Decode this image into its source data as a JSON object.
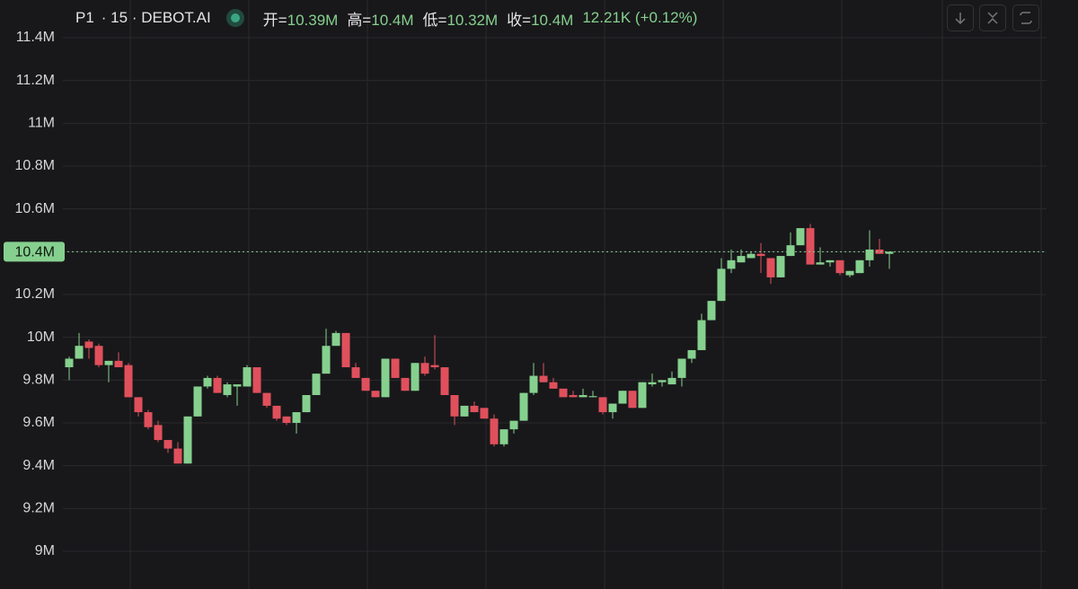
{
  "chart_data": {
    "type": "candlestick",
    "symbol": "P1",
    "interval_source": "· 15 · DEBOT.AI",
    "ohlc_legend": [
      {
        "label": "开=",
        "value": "10.39M"
      },
      {
        "label": "高=",
        "value": "10.4M"
      },
      {
        "label": "低=",
        "value": "10.32M"
      },
      {
        "label": "收=",
        "value": "10.4M"
      }
    ],
    "change_text": "12.21K (+0.12%)",
    "up_color": "#86d08f",
    "down_color": "#e0505c",
    "grid": true,
    "ylim": [
      8.95,
      11.45
    ],
    "yticks": [
      {
        "value": 9,
        "label": "9M"
      },
      {
        "value": 9.2,
        "label": "9.2M"
      },
      {
        "value": 9.4,
        "label": "9.4M"
      },
      {
        "value": 9.6,
        "label": "9.6M"
      },
      {
        "value": 9.8,
        "label": "9.8M"
      },
      {
        "value": 10,
        "label": "10M"
      },
      {
        "value": 10.2,
        "label": "10.2M"
      },
      {
        "value": 10.4,
        "label": "10.4M"
      },
      {
        "value": 10.6,
        "label": "10.6M"
      },
      {
        "value": 10.8,
        "label": "10.8M"
      },
      {
        "value": 11,
        "label": "11M"
      },
      {
        "value": 11.2,
        "label": "11.2M"
      },
      {
        "value": 11.4,
        "label": "11.4M"
      }
    ],
    "last_price": {
      "value": 10.4,
      "label": "10.4M"
    },
    "open": [
      9.86,
      9.9,
      9.98,
      9.96,
      9.87,
      9.89,
      9.87,
      9.72,
      9.65,
      9.59,
      9.52,
      9.48,
      9.41,
      9.63,
      9.77,
      9.81,
      9.73,
      9.77,
      9.77,
      9.86,
      9.74,
      9.68,
      9.63,
      9.6,
      9.65,
      9.73,
      9.83,
      9.96,
      10.02,
      9.86,
      9.81,
      9.75,
      9.72,
      9.9,
      9.81,
      9.75,
      9.88,
      9.87,
      9.86,
      9.73,
      9.63,
      9.68,
      9.67,
      9.62,
      9.5,
      9.57,
      9.61,
      9.74,
      9.82,
      9.79,
      9.76,
      9.73,
      9.72,
      9.72,
      9.72,
      9.65,
      9.69,
      9.75,
      9.67,
      9.78,
      9.79,
      9.78,
      9.81,
      9.9,
      9.94,
      10.08,
      10.17,
      10.32,
      10.35,
      10.37,
      10.39,
      10.37,
      10.28,
      10.38,
      10.43,
      10.51,
      10.34,
      10.35,
      10.36,
      10.29,
      10.3,
      10.36,
      10.41,
      10.39
    ],
    "high": [
      9.91,
      10.02,
      9.99,
      9.97,
      9.89,
      9.93,
      9.88,
      9.72,
      9.66,
      9.61,
      9.52,
      9.51,
      9.63,
      9.77,
      9.82,
      9.82,
      9.79,
      9.78,
      9.87,
      9.86,
      9.74,
      9.68,
      9.63,
      9.65,
      9.73,
      9.83,
      10.04,
      10.03,
      10.02,
      9.88,
      9.81,
      9.75,
      9.9,
      9.9,
      9.81,
      9.88,
      9.91,
      10.01,
      9.86,
      9.73,
      9.68,
      9.7,
      9.67,
      9.64,
      9.57,
      9.61,
      9.74,
      9.88,
      9.88,
      9.81,
      9.76,
      9.75,
      9.76,
      9.75,
      9.72,
      9.69,
      9.75,
      9.75,
      9.79,
      9.83,
      9.8,
      9.84,
      9.9,
      9.94,
      10.11,
      10.17,
      10.37,
      10.41,
      10.41,
      10.4,
      10.44,
      10.37,
      10.38,
      10.49,
      10.51,
      10.53,
      10.42,
      10.36,
      10.36,
      10.31,
      10.36,
      10.5,
      10.46,
      10.4
    ],
    "low": [
      9.8,
      9.9,
      9.9,
      9.86,
      9.79,
      9.86,
      9.72,
      9.63,
      9.57,
      9.51,
      9.46,
      9.41,
      9.41,
      9.63,
      9.76,
      9.74,
      9.72,
      9.68,
      9.77,
      9.74,
      9.67,
      9.61,
      9.59,
      9.55,
      9.65,
      9.73,
      9.83,
      9.96,
      9.86,
      9.81,
      9.75,
      9.72,
      9.72,
      9.81,
      9.75,
      9.75,
      9.82,
      9.85,
      9.73,
      9.59,
      9.63,
      9.65,
      9.62,
      9.49,
      9.49,
      9.55,
      9.61,
      9.73,
      9.79,
      9.76,
      9.72,
      9.72,
      9.72,
      9.72,
      9.64,
      9.62,
      9.69,
      9.67,
      9.67,
      9.77,
      9.77,
      9.78,
      9.77,
      9.88,
      9.94,
      10.08,
      10.17,
      10.3,
      10.35,
      10.37,
      10.3,
      10.25,
      10.28,
      10.38,
      10.43,
      10.34,
      10.34,
      10.33,
      10.29,
      10.28,
      10.3,
      10.33,
      10.39,
      10.32
    ],
    "close": [
      9.9,
      9.96,
      9.95,
      9.87,
      9.89,
      9.86,
      9.72,
      9.65,
      9.58,
      9.52,
      9.48,
      9.41,
      9.63,
      9.77,
      9.81,
      9.74,
      9.78,
      9.78,
      9.86,
      9.74,
      9.68,
      9.62,
      9.6,
      9.65,
      9.73,
      9.83,
      9.96,
      10.02,
      9.86,
      9.81,
      9.75,
      9.72,
      9.9,
      9.81,
      9.75,
      9.88,
      9.83,
      9.86,
      9.73,
      9.63,
      9.68,
      9.65,
      9.62,
      9.5,
      9.57,
      9.61,
      9.74,
      9.82,
      9.79,
      9.76,
      9.72,
      9.72,
      9.73,
      9.725,
      9.65,
      9.69,
      9.75,
      9.67,
      9.79,
      9.79,
      9.8,
      9.81,
      9.9,
      9.94,
      10.08,
      10.17,
      10.32,
      10.36,
      10.38,
      10.39,
      10.38,
      10.28,
      10.38,
      10.43,
      10.51,
      10.34,
      10.35,
      10.36,
      10.3,
      10.31,
      10.36,
      10.41,
      10.39,
      10.4
    ]
  }
}
